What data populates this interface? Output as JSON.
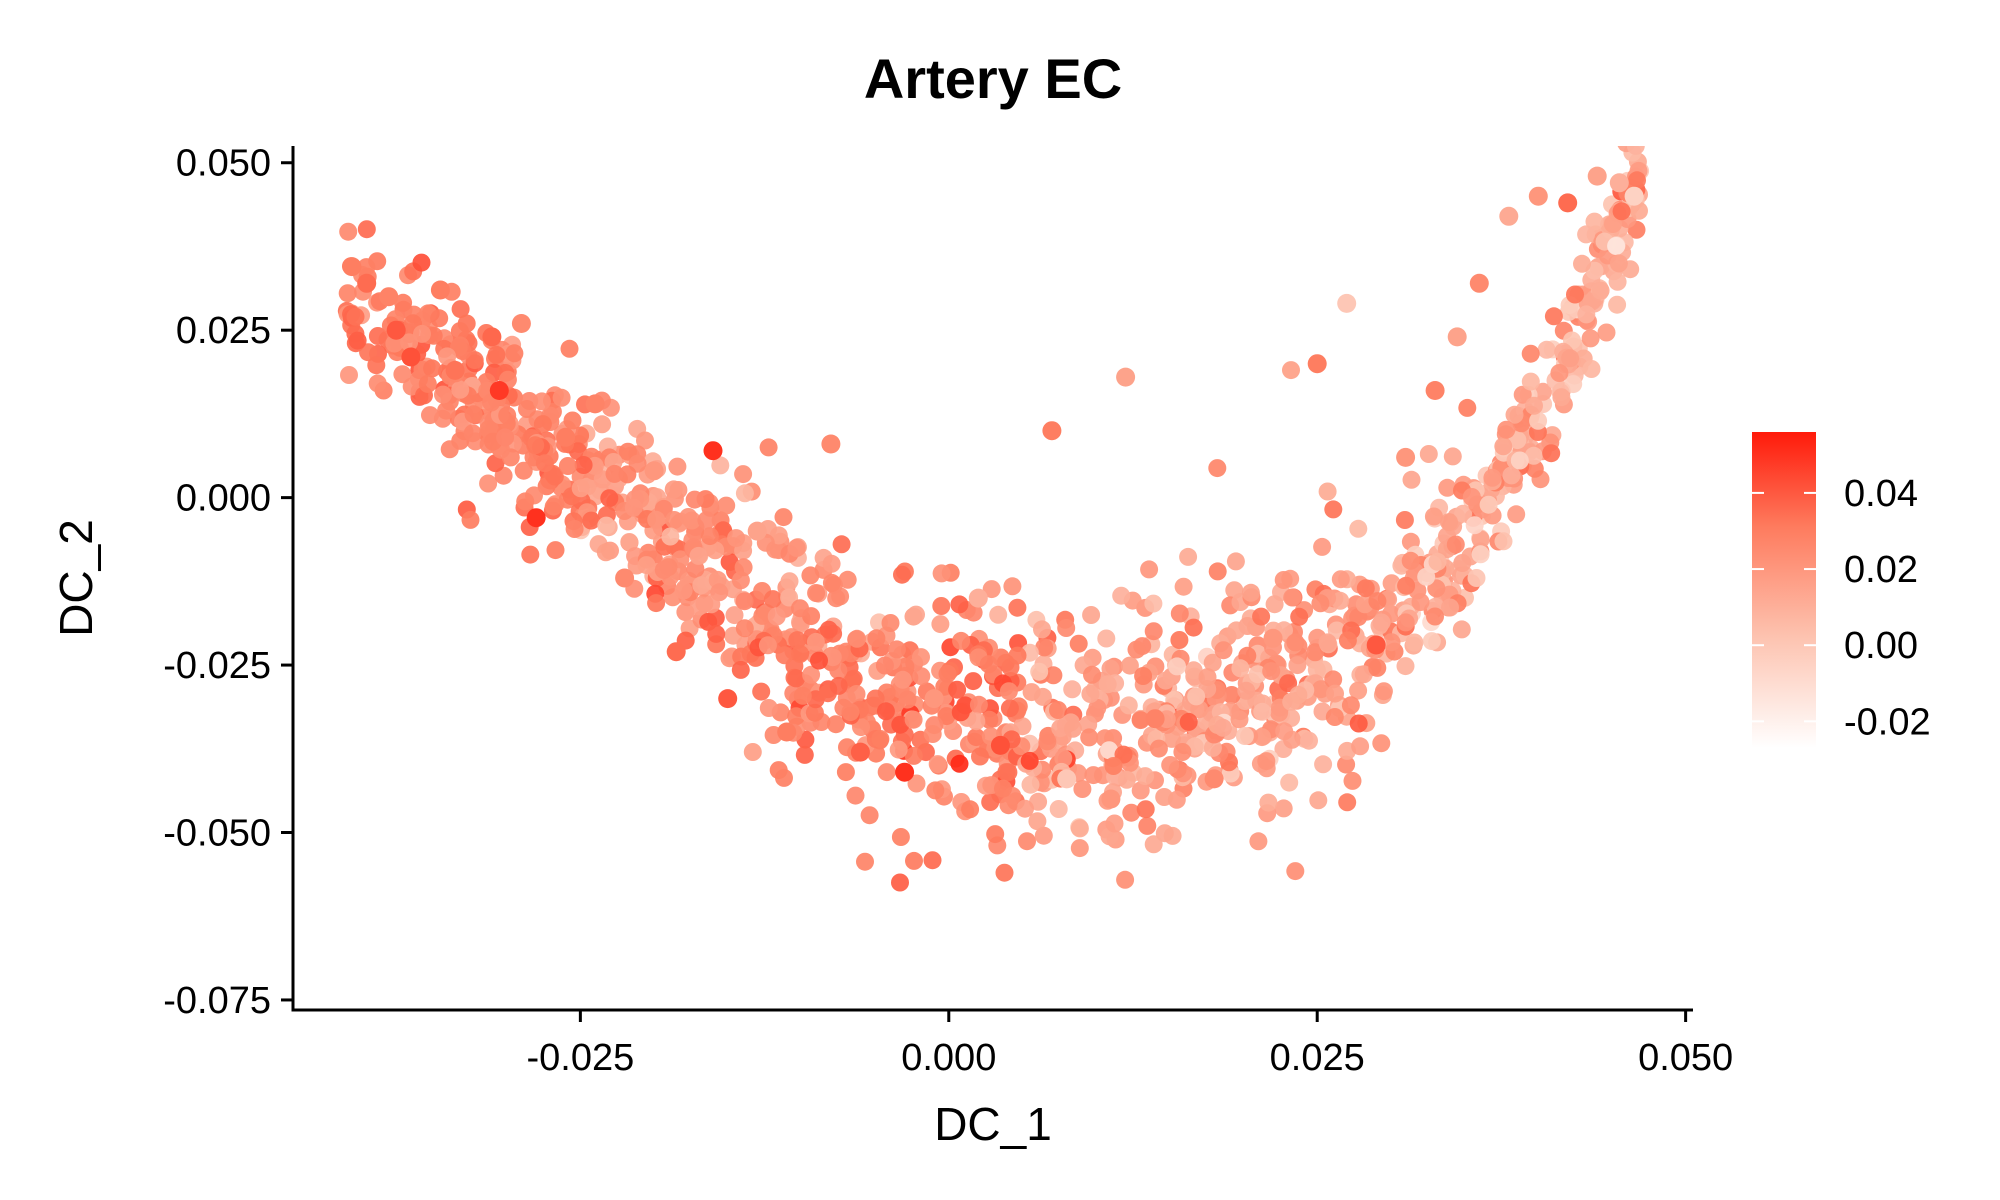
{
  "chart_data": {
    "type": "scatter",
    "title": "Artery EC",
    "xlabel": "DC_1",
    "ylabel": "DC_2",
    "xlim": [
      -0.0445,
      0.0505
    ],
    "ylim": [
      -0.0765,
      0.0525
    ],
    "xticks": [
      -0.025,
      0.0,
      0.025,
      0.05
    ],
    "xtick_labels": [
      "-0.025",
      "0.000",
      "0.025",
      "0.050"
    ],
    "yticks": [
      0.05,
      0.025,
      0.0,
      -0.025,
      -0.05,
      -0.075
    ],
    "ytick_labels": [
      "0.050",
      "0.025",
      "0.000",
      "-0.025",
      "-0.050",
      "-0.075"
    ],
    "grid": false,
    "legend": {
      "placement": "right",
      "type": "continuous-colorbar",
      "min": -0.027,
      "max": 0.056,
      "ticks": [
        0.04,
        0.02,
        0.0,
        -0.02
      ],
      "tick_labels": [
        "0.04",
        "0.02",
        "0.00",
        "-0.02"
      ],
      "color_low": "#ffffff",
      "color_high": "#ff1a0a"
    },
    "distribution": "U-shaped band from top-left through bottom-center to top-right, approx. 1500 cells",
    "points": [
      {
        "x": -0.0405,
        "y": 0.0345,
        "v": 0.03
      },
      {
        "x": -0.0395,
        "y": 0.032,
        "v": 0.035
      },
      {
        "x": -0.038,
        "y": 0.03,
        "v": 0.028
      },
      {
        "x": -0.0375,
        "y": 0.025,
        "v": 0.04
      },
      {
        "x": -0.0365,
        "y": 0.021,
        "v": 0.042
      },
      {
        "x": -0.0345,
        "y": 0.031,
        "v": 0.03
      },
      {
        "x": -0.0335,
        "y": 0.019,
        "v": 0.033
      },
      {
        "x": -0.031,
        "y": 0.024,
        "v": 0.036
      },
      {
        "x": -0.0305,
        "y": 0.016,
        "v": 0.048
      },
      {
        "x": -0.029,
        "y": 0.026,
        "v": 0.025
      },
      {
        "x": -0.028,
        "y": -0.003,
        "v": 0.05
      },
      {
        "x": -0.026,
        "y": 0.009,
        "v": 0.03
      },
      {
        "x": -0.024,
        "y": 0.014,
        "v": 0.028
      },
      {
        "x": -0.022,
        "y": -0.012,
        "v": 0.025
      },
      {
        "x": -0.02,
        "y": 0.004,
        "v": 0.02
      },
      {
        "x": -0.0185,
        "y": -0.023,
        "v": 0.035
      },
      {
        "x": -0.016,
        "y": 0.007,
        "v": 0.05
      },
      {
        "x": -0.015,
        "y": -0.03,
        "v": 0.04
      },
      {
        "x": -0.013,
        "y": -0.005,
        "v": 0.015
      },
      {
        "x": -0.011,
        "y": -0.035,
        "v": 0.03
      },
      {
        "x": -0.008,
        "y": 0.008,
        "v": 0.025
      },
      {
        "x": -0.006,
        "y": -0.038,
        "v": 0.038
      },
      {
        "x": -0.003,
        "y": -0.041,
        "v": 0.05
      },
      {
        "x": -0.001,
        "y": -0.03,
        "v": 0.02
      },
      {
        "x": 0.002,
        "y": -0.015,
        "v": 0.01
      },
      {
        "x": 0.0035,
        "y": -0.037,
        "v": 0.042
      },
      {
        "x": 0.007,
        "y": 0.01,
        "v": 0.03
      },
      {
        "x": 0.008,
        "y": -0.042,
        "v": 0.0
      },
      {
        "x": 0.011,
        "y": -0.045,
        "v": 0.02
      },
      {
        "x": 0.012,
        "y": 0.018,
        "v": 0.015
      },
      {
        "x": 0.014,
        "y": -0.033,
        "v": 0.028
      },
      {
        "x": 0.018,
        "y": -0.042,
        "v": 0.025
      },
      {
        "x": 0.022,
        "y": -0.021,
        "v": 0.02
      },
      {
        "x": 0.025,
        "y": 0.02,
        "v": 0.03
      },
      {
        "x": 0.027,
        "y": 0.029,
        "v": 0.0
      },
      {
        "x": 0.029,
        "y": -0.022,
        "v": 0.04
      },
      {
        "x": 0.031,
        "y": 0.006,
        "v": 0.02
      },
      {
        "x": 0.033,
        "y": 0.016,
        "v": 0.028
      },
      {
        "x": 0.0345,
        "y": 0.024,
        "v": 0.015
      },
      {
        "x": 0.036,
        "y": 0.032,
        "v": 0.025
      },
      {
        "x": 0.038,
        "y": 0.042,
        "v": 0.012
      },
      {
        "x": 0.04,
        "y": 0.045,
        "v": 0.02
      },
      {
        "x": 0.042,
        "y": 0.044,
        "v": 0.035
      },
      {
        "x": 0.044,
        "y": 0.048,
        "v": 0.015
      },
      {
        "x": 0.0455,
        "y": 0.047,
        "v": 0.01
      },
      {
        "x": 0.0465,
        "y": 0.045,
        "v": -0.005
      }
    ]
  }
}
